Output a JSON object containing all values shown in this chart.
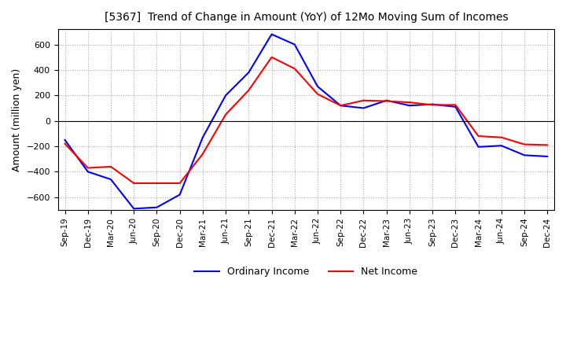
{
  "title": "[5367]  Trend of Change in Amount (YoY) of 12Mo Moving Sum of Incomes",
  "ylabel": "Amount (million yen)",
  "ylim": [
    -700,
    720
  ],
  "yticks": [
    -600,
    -400,
    -200,
    0,
    200,
    400,
    600
  ],
  "background_color": "#ffffff",
  "grid_color": "#aaaaaa",
  "ordinary_income_color": "#0000ff",
  "net_income_color": "#ff0000",
  "x_labels": [
    "Sep-19",
    "Dec-19",
    "Mar-20",
    "Jun-20",
    "Sep-20",
    "Dec-20",
    "Mar-21",
    "Jun-21",
    "Sep-21",
    "Dec-21",
    "Mar-22",
    "Jun-22",
    "Sep-22",
    "Dec-22",
    "Mar-23",
    "Jun-23",
    "Sep-23",
    "Dec-23",
    "Mar-24",
    "Jun-24",
    "Sep-24",
    "Dec-24"
  ],
  "ordinary_income": [
    -150,
    -400,
    -460,
    -690,
    -680,
    -580,
    -130,
    200,
    380,
    680,
    600,
    270,
    120,
    100,
    160,
    120,
    130,
    110,
    -205,
    -195,
    -270,
    -280
  ],
  "net_income": [
    -180,
    -370,
    -360,
    -490,
    -490,
    -490,
    -260,
    50,
    240,
    500,
    410,
    210,
    120,
    160,
    155,
    145,
    125,
    125,
    -120,
    -130,
    -185,
    -190
  ]
}
